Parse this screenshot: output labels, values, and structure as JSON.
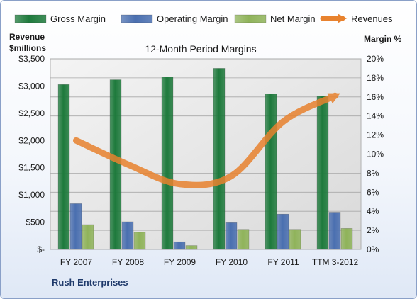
{
  "chart_data": {
    "type": "bar",
    "title": "12-Month Period Margins",
    "company": "Rush Enterprises",
    "y_left_label_line1": "Revenue",
    "y_left_label_line2": "$millions",
    "y_right_label": "Margin %",
    "categories": [
      "FY 2007",
      "FY 2008",
      "FY 2009",
      "FY 2010",
      "FY 2011",
      "TTM 3-2012"
    ],
    "left_axis": {
      "min": 0,
      "max": 3500,
      "step": 500,
      "tick_labels": [
        "$-",
        "$500",
        "$1,000",
        "$1,500",
        "$2,000",
        "$2,500",
        "$3,000",
        "$3,500"
      ]
    },
    "right_axis": {
      "min": 0,
      "max": 20,
      "step": 2,
      "tick_labels": [
        "0%",
        "2%",
        "4%",
        "6%",
        "8%",
        "10%",
        "12%",
        "14%",
        "16%",
        "18%",
        "20%"
      ]
    },
    "series": [
      {
        "name": "Gross Margin",
        "axis": "right",
        "kind": "bar",
        "color": "#1e7a3c",
        "values": [
          17.3,
          17.8,
          18.1,
          19.0,
          16.3,
          16.1
        ]
      },
      {
        "name": "Operating Margin",
        "axis": "right",
        "kind": "bar",
        "color": "#4a6fb0",
        "values": [
          4.8,
          2.9,
          0.8,
          2.8,
          3.7,
          3.9
        ]
      },
      {
        "name": "Net Margin",
        "axis": "right",
        "kind": "bar",
        "color": "#8fb35a",
        "values": [
          2.6,
          1.8,
          0.4,
          2.1,
          2.1,
          2.2
        ]
      },
      {
        "name": "Revenues",
        "axis": "left",
        "kind": "line",
        "color": "#e8822e",
        "values": [
          2000,
          1560,
          1200,
          1350,
          2350,
          2820
        ]
      }
    ],
    "grid": true,
    "legend_position": "top"
  }
}
